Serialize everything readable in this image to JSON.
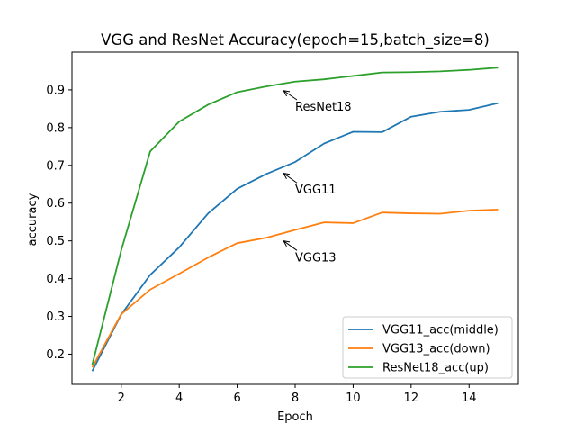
{
  "chart_data": {
    "type": "line",
    "title": "VGG and ResNet Accuracy(epoch=15,batch_size=8)",
    "xlabel": "Epoch",
    "ylabel": "accuracy",
    "xlim": [
      0.3,
      15.7
    ],
    "ylim": [
      0.12,
      1.0
    ],
    "x_ticks": [
      2,
      4,
      6,
      8,
      10,
      12,
      14
    ],
    "y_ticks": [
      0.2,
      0.3,
      0.4,
      0.5,
      0.6,
      0.7,
      0.8,
      0.9
    ],
    "grid": false,
    "legend_position": "lower-right",
    "x": [
      1,
      2,
      3,
      4,
      5,
      6,
      7,
      8,
      9,
      10,
      11,
      12,
      13,
      14,
      15
    ],
    "series": [
      {
        "name": "VGG11_acc(middle)",
        "color": "#1f77b4",
        "values": [
          0.155,
          0.305,
          0.41,
          0.483,
          0.573,
          0.638,
          0.677,
          0.709,
          0.758,
          0.789,
          0.788,
          0.829,
          0.842,
          0.847,
          0.865
        ]
      },
      {
        "name": "VGG13_acc(down)",
        "color": "#ff7f0e",
        "values": [
          0.165,
          0.306,
          0.371,
          0.413,
          0.456,
          0.494,
          0.508,
          0.529,
          0.549,
          0.547,
          0.575,
          0.573,
          0.572,
          0.58,
          0.583
        ]
      },
      {
        "name": "ResNet18_acc(up)",
        "color": "#2ca02c",
        "values": [
          0.172,
          0.475,
          0.737,
          0.816,
          0.861,
          0.894,
          0.909,
          0.922,
          0.928,
          0.937,
          0.946,
          0.947,
          0.949,
          0.953,
          0.959
        ]
      }
    ],
    "annotations": [
      {
        "text": "ResNet18",
        "point": [
          7.6,
          0.898
        ],
        "text_at": [
          8,
          0.845
        ]
      },
      {
        "text": "VGG11",
        "point": [
          7.6,
          0.679
        ],
        "text_at": [
          8,
          0.625
        ]
      },
      {
        "text": "VGG13",
        "point": [
          7.6,
          0.5
        ],
        "text_at": [
          8,
          0.446
        ]
      }
    ]
  }
}
